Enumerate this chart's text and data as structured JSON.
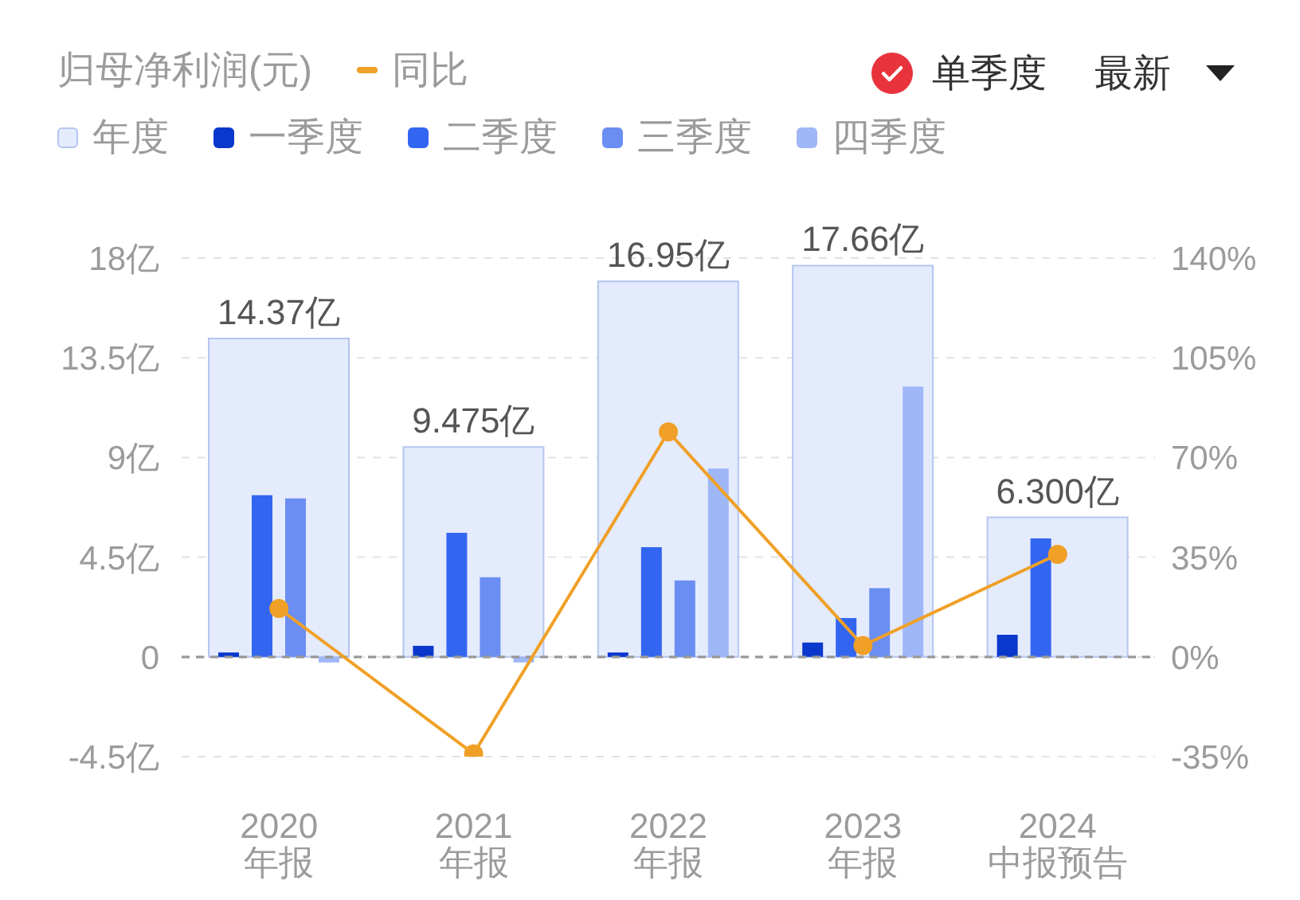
{
  "chart_data": {
    "type": "bar",
    "title": "归母净利润(元)",
    "categories": [
      "2020\n年报",
      "2021\n年报",
      "2022\n年报",
      "2023\n年报",
      "2024\n中报预告"
    ],
    "series": [
      {
        "name": "年度",
        "color": "#e4ebfd",
        "values": [
          14.37,
          9.475,
          16.95,
          17.66,
          6.3
        ],
        "value_labels": [
          "14.37亿",
          "9.475亿",
          "16.95亿",
          "17.66亿",
          "6.300亿"
        ]
      },
      {
        "name": "一季度",
        "color": "#0a37cc",
        "values": [
          0.2,
          0.5,
          0.2,
          0.65,
          1.0
        ]
      },
      {
        "name": "二季度",
        "color": "#3366f0",
        "values": [
          7.3,
          5.6,
          4.95,
          1.75,
          5.35
        ]
      },
      {
        "name": "三季度",
        "color": "#6b8ef2",
        "values": [
          7.15,
          3.6,
          3.45,
          3.1,
          null
        ]
      },
      {
        "name": "四季度",
        "color": "#a0b7f7",
        "values": [
          -0.25,
          -0.25,
          8.5,
          12.2,
          null
        ]
      },
      {
        "name": "同比",
        "type": "line",
        "axis": "y2",
        "color": "#f0a027",
        "values": [
          17,
          -34,
          79,
          4,
          36
        ]
      }
    ],
    "ylim": [
      -4.5,
      18
    ],
    "yticks": [
      {
        "value": -4.5,
        "label": "-4.5亿"
      },
      0,
      {
        "value": 4.5,
        "label": "4.5亿"
      },
      {
        "value": 9,
        "label": "9亿"
      },
      {
        "value": 13.5,
        "label": "13.5亿"
      },
      {
        "value": 18,
        "label": "18亿"
      }
    ],
    "y2lim": [
      -35,
      140
    ],
    "y2ticks": [
      {
        "value": -35,
        "label": "-35%"
      },
      {
        "value": 0,
        "label": "0%"
      },
      {
        "value": 35,
        "label": "35%"
      },
      {
        "value": 70,
        "label": "70%"
      },
      {
        "value": 105,
        "label": "105%"
      },
      {
        "value": 140,
        "label": "140%"
      }
    ],
    "ref_lines": [
      {
        "axis": "y",
        "value": 0,
        "color": "#999999",
        "line_style": "dashed"
      }
    ],
    "grid": "y",
    "legend": "top left",
    "marker": "circle",
    "annotations": [
      "单季度",
      "最新"
    ]
  }
}
